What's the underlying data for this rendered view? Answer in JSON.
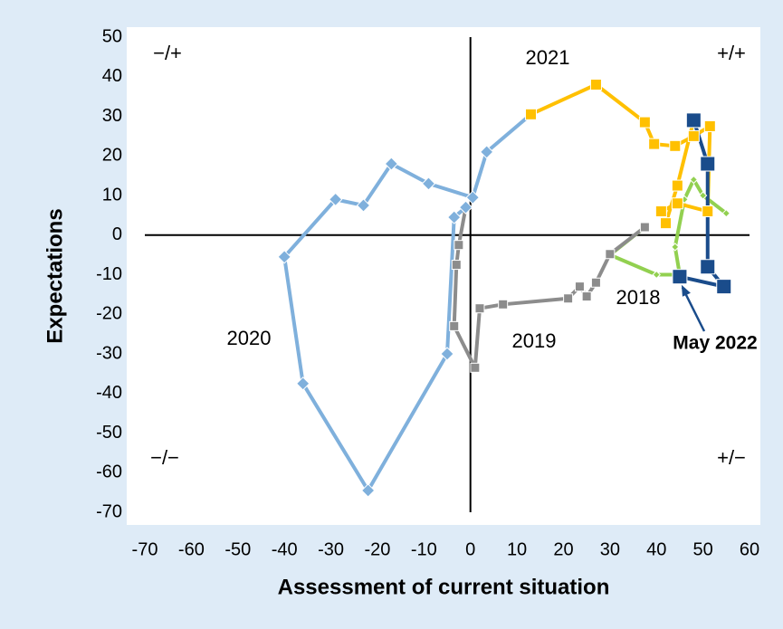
{
  "chart_data": {
    "type": "line",
    "x_label": "Assessment of current situation",
    "y_label": "Expectations",
    "xlim": [
      -70,
      60
    ],
    "ylim": [
      -70,
      50
    ],
    "xticks": [
      -70,
      -60,
      -50,
      -40,
      -30,
      -20,
      -10,
      0,
      10,
      20,
      30,
      40,
      50,
      60
    ],
    "yticks": [
      -70,
      -60,
      -50,
      -40,
      -30,
      -20,
      -10,
      0,
      10,
      20,
      30,
      40,
      50
    ],
    "series": [
      {
        "name": "2018",
        "color": "#92d050",
        "marker": "diamond",
        "marker_size": 8,
        "x": [
          55,
          50,
          48,
          46,
          44,
          45,
          40,
          30
        ],
        "values": [
          5.5,
          10,
          14,
          9,
          -3,
          -10,
          -10,
          -5
        ]
      },
      {
        "name": "2019",
        "color": "#8c8c8c",
        "marker": "square",
        "marker_size": 10,
        "x": [
          37.5,
          30,
          27,
          25,
          23.5,
          21,
          7,
          2,
          1,
          -3.5,
          -3,
          -2.5
        ],
        "values": [
          2,
          -4.8,
          -12,
          -15.5,
          -13,
          -16,
          -17.5,
          -18.5,
          -33.5,
          -23,
          -7.5,
          -2.5
        ]
      },
      {
        "name": "2020",
        "color": "#7fb0dc",
        "marker": "diamond",
        "marker_size": 14,
        "x": [
          -1,
          -3.5,
          -5,
          -22,
          -36,
          -40,
          -29,
          -23,
          -17,
          -9,
          0.5,
          3.5
        ],
        "values": [
          7,
          4.5,
          -30,
          -64.5,
          -37.5,
          -5.5,
          9,
          7.5,
          18,
          13,
          9.5,
          21
        ]
      },
      {
        "name": "2021",
        "color": "#ffc000",
        "marker": "square",
        "marker_size": 12,
        "x": [
          13,
          27,
          37.5,
          39.5,
          44,
          48,
          51.5,
          51,
          44.5,
          41,
          42,
          44.5
        ],
        "values": [
          30.5,
          38,
          28.5,
          23,
          22.5,
          25,
          27.5,
          6,
          8,
          6,
          3,
          12.5
        ]
      },
      {
        "color": "#1a4c8b",
        "marker": "square",
        "marker_size": 16,
        "x": [
          48,
          51,
          51,
          54.5,
          45
        ],
        "values": [
          29,
          18,
          -8,
          -13,
          -10.5
        ]
      }
    ],
    "quadrant_labels": [
      "−/+",
      "+/+",
      "−/−",
      "+/−"
    ],
    "annotation": "May 2022"
  }
}
